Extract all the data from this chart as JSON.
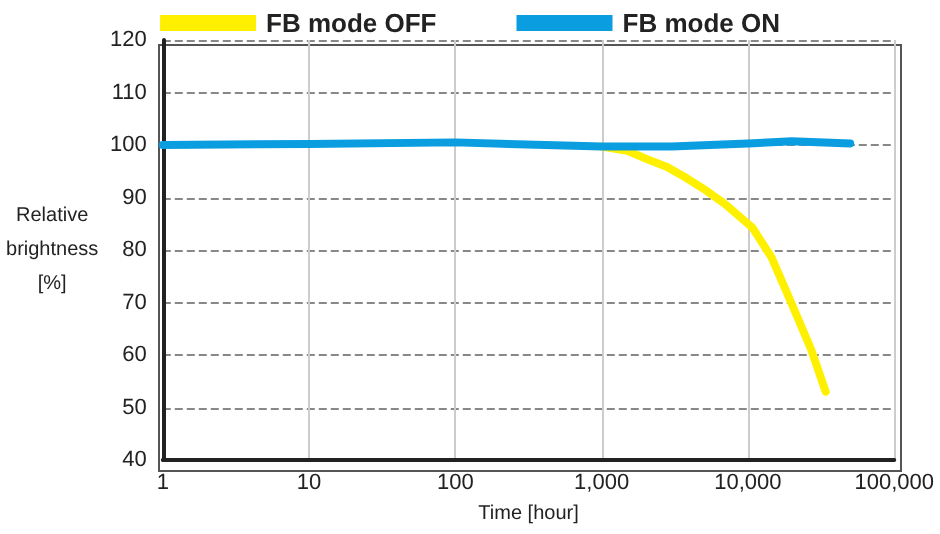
{
  "chart_data": {
    "type": "line",
    "xlabel": "Time [hour]",
    "ylabel": "Relative brightness [%]",
    "log": "x",
    "grid": true,
    "legend": "top",
    "marker": "none",
    "line_style": "solid",
    "xlim": [
      1,
      100000
    ],
    "xticks": [
      1,
      10,
      100,
      {
        "value": 1000,
        "label": "1,000"
      },
      {
        "value": 10000,
        "label": "10,000"
      },
      {
        "value": 100000,
        "label": "100,000"
      }
    ],
    "ylim": [
      40,
      120
    ],
    "yticks": [
      40,
      50,
      60,
      70,
      80,
      90,
      100,
      110,
      120
    ],
    "series": [
      {
        "name": "FB mode OFF",
        "color": "#fff000",
        "x": [
          1000,
          1500,
          2000,
          2800,
          3800,
          5200,
          7000,
          10700,
          14500,
          19800,
          27000,
          34000
        ],
        "values": [
          99.7,
          98.9,
          97.4,
          95.8,
          93.7,
          91.3,
          88.7,
          84.3,
          78.6,
          69.9,
          61.1,
          53
        ]
      },
      {
        "name": "FB mode ON",
        "color": "#0a9de0",
        "x": [
          1,
          10,
          100,
          1000,
          3000,
          10000,
          20000,
          50000
        ],
        "values": [
          100,
          100.2,
          100.5,
          99.7,
          99.7,
          100.3,
          100.7,
          100.3
        ]
      }
    ]
  }
}
